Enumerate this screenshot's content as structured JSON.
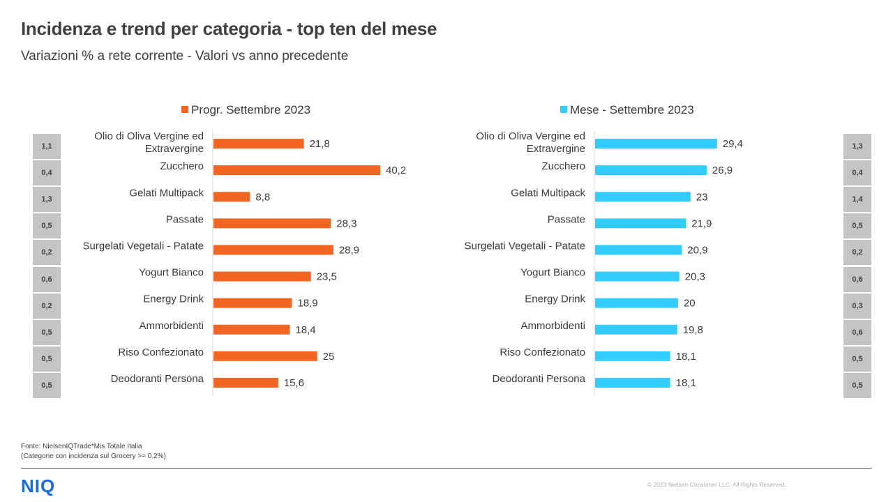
{
  "title": "Incidenza e trend per categoria - top ten del mese",
  "subtitle": "Variazioni  % a rete corrente - Valori vs anno precedente",
  "footer": {
    "source": "Fonte: NielsenIQTrade*Mis Totale Italia",
    "note": "(Categorie con incidenza sul Grocery >= 0.2%)",
    "logo": "NIQ",
    "copyright": "© 2023 Nielsen Consumer LLC. All Rights Reserved."
  },
  "colors": {
    "left_series": "#f26522",
    "right_series": "#33ccff",
    "incidence_box": "#c4c4c4"
  },
  "chart_data": [
    {
      "type": "bar",
      "orientation": "horizontal",
      "legend_position": "top",
      "categories": [
        [
          "Olio di Oliva Vergine ed",
          "Extravergine"
        ],
        [
          "Zucchero"
        ],
        [
          "Gelati Multipack"
        ],
        [
          "Passate"
        ],
        [
          "Surgelati Vegetali - Patate"
        ],
        [
          "Yogurt Bianco"
        ],
        [
          "Energy Drink"
        ],
        [
          "Ammorbidenti"
        ],
        [
          "Riso Confezionato"
        ],
        [
          "Deodoranti Persona"
        ]
      ],
      "series": [
        {
          "name": "Progr. Settembre 2023",
          "values": [
            21.8,
            40.2,
            8.8,
            28.3,
            28.9,
            23.5,
            18.9,
            18.4,
            25,
            15.6
          ]
        }
      ],
      "data_labels": [
        "21,8",
        "40,2",
        "8,8",
        "28,3",
        "28,9",
        "23,5",
        "18,9",
        "18,4",
        "25",
        "15,6"
      ],
      "incidence": [
        "1,1",
        "0,4",
        "1,3",
        "0,5",
        "0,2",
        "0,6",
        "0,2",
        "0,5",
        "0,5",
        "0,5"
      ],
      "xlim": [
        0,
        40.2
      ]
    },
    {
      "type": "bar",
      "orientation": "horizontal",
      "legend_position": "top",
      "categories": [
        [
          "Olio di Oliva Vergine ed",
          "Extravergine"
        ],
        [
          "Zucchero"
        ],
        [
          "Gelati Multipack"
        ],
        [
          "Passate"
        ],
        [
          "Surgelati Vegetali - Patate"
        ],
        [
          "Yogurt Bianco"
        ],
        [
          "Energy Drink"
        ],
        [
          "Ammorbidenti"
        ],
        [
          "Riso Confezionato"
        ],
        [
          "Deodoranti Persona"
        ]
      ],
      "series": [
        {
          "name": "Mese - Settembre 2023",
          "values": [
            29.4,
            26.9,
            23,
            21.9,
            20.9,
            20.3,
            20,
            19.8,
            18.1,
            18.1
          ]
        }
      ],
      "data_labels": [
        "29,4",
        "26,9",
        "23",
        "21,9",
        "20,9",
        "20,3",
        "20",
        "19,8",
        "18,1",
        "18,1"
      ],
      "incidence": [
        "1,3",
        "0,4",
        "1,4",
        "0,5",
        "0,2",
        "0,6",
        "0,3",
        "0,6",
        "0,5",
        "0,5"
      ],
      "xlim": [
        0,
        40.2
      ]
    }
  ]
}
